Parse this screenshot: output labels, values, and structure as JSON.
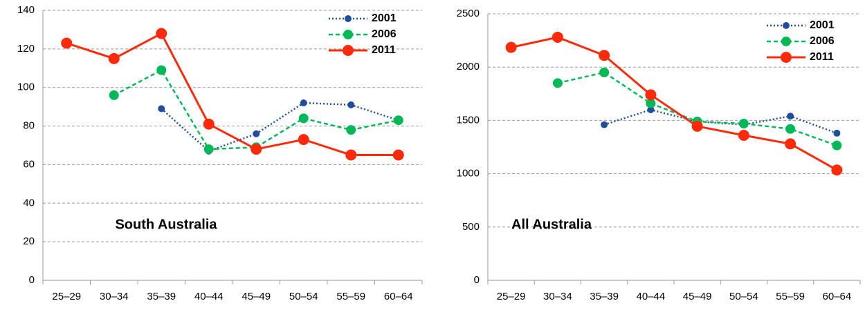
{
  "chart_data": [
    {
      "type": "line",
      "title": "South Australia",
      "categories": [
        "25–29",
        "30–34",
        "35–39",
        "40–44",
        "45–49",
        "50–54",
        "55–59",
        "60–64"
      ],
      "series": [
        {
          "name": "2001",
          "color": "#1f4e9c",
          "line_style": "dotted",
          "values": [
            null,
            null,
            89,
            67,
            76,
            92,
            91,
            83
          ]
        },
        {
          "name": "2006",
          "color": "#00b956",
          "line_style": "dashed",
          "values": [
            null,
            96,
            109,
            68,
            69,
            84,
            78,
            83
          ]
        },
        {
          "name": "2011",
          "color": "#ff2a0a",
          "line_style": "solid",
          "values": [
            123,
            115,
            128,
            81,
            68,
            73,
            65,
            65
          ]
        }
      ],
      "ylim": [
        0,
        140
      ],
      "yticks": [
        0,
        20,
        40,
        60,
        80,
        100,
        120,
        140
      ],
      "grid": true,
      "legend": "upper right"
    },
    {
      "type": "line",
      "title": "All Australia",
      "categories": [
        "25–29",
        "30–34",
        "35–39",
        "40–44",
        "45–49",
        "50–54",
        "55–59",
        "60–64"
      ],
      "series": [
        {
          "name": "2001",
          "color": "#1f4e9c",
          "line_style": "dotted",
          "values": [
            null,
            null,
            1460,
            1600,
            1490,
            1460,
            1540,
            1380
          ]
        },
        {
          "name": "2006",
          "color": "#00b956",
          "line_style": "dashed",
          "values": [
            null,
            1850,
            1950,
            1660,
            1490,
            1470,
            1420,
            1265
          ]
        },
        {
          "name": "2011",
          "color": "#ff2a0a",
          "line_style": "solid",
          "values": [
            2185,
            2280,
            2110,
            1740,
            1445,
            1360,
            1280,
            1035
          ]
        }
      ],
      "ylim": [
        0,
        2500
      ],
      "yticks": [
        0,
        500,
        1000,
        1500,
        2000,
        2500
      ],
      "grid": true,
      "legend": "upper right"
    }
  ]
}
